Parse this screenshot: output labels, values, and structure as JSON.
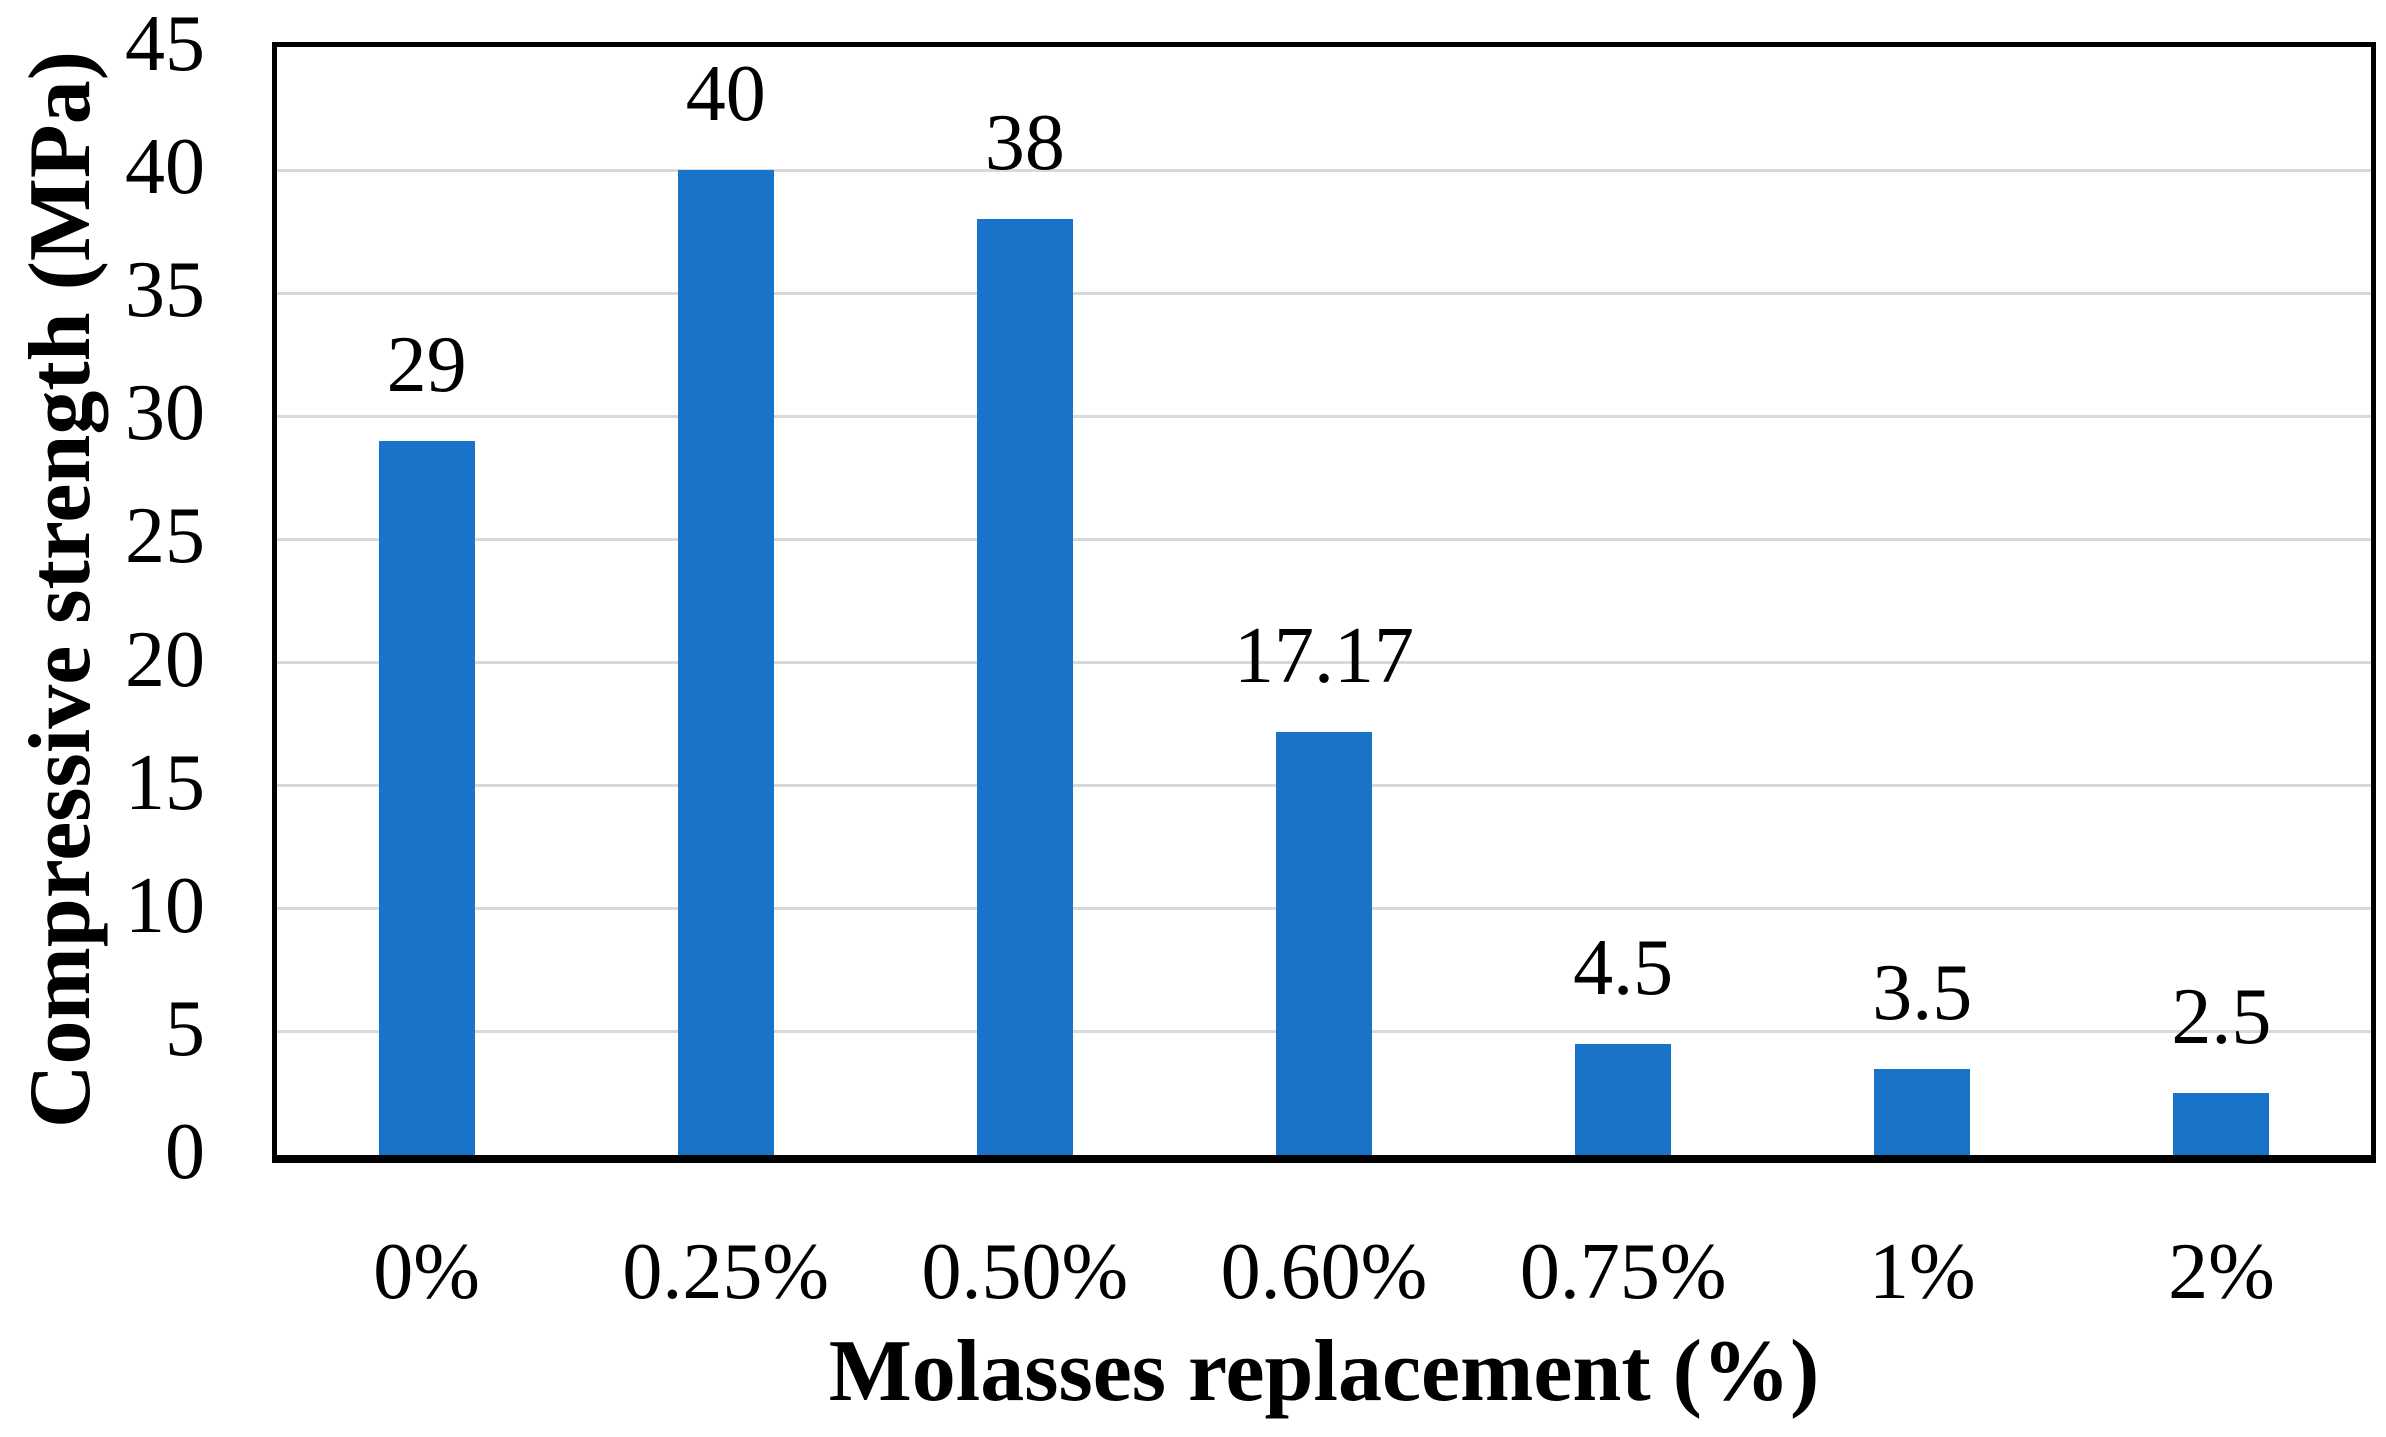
{
  "chart_data": {
    "type": "bar",
    "title": "",
    "categories": [
      "0%",
      "0.25%",
      "0.50%",
      "0.60%",
      "0.75%",
      "1%",
      "2%"
    ],
    "values": [
      29,
      40,
      38,
      17.17,
      4.5,
      3.5,
      2.5
    ],
    "value_labels": [
      "29",
      "40",
      "38",
      "17.17",
      "4.5",
      "3.5",
      "2.5"
    ],
    "xlabel": "Molasses replacement (%)",
    "ylabel": "Compressive strength (MPa)",
    "ylim": [
      0,
      45
    ],
    "ytick_step": 5,
    "yticks": [
      0,
      5,
      10,
      15,
      20,
      25,
      30,
      35,
      40,
      45
    ],
    "grid": "horizontal-only",
    "legend": "none",
    "bar_color": "#1973C8",
    "grid_color": "#D9D9D9",
    "axis_color": "#000000",
    "text_color": "#000000",
    "background": "#FFFFFF"
  }
}
